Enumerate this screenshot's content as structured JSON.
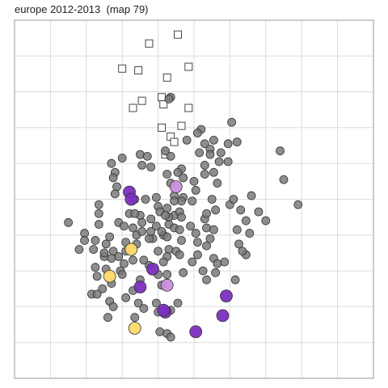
{
  "chart_data": {
    "type": "scatter",
    "title": "europe 2012-2013  (map 79)",
    "xlabel": "",
    "ylabel": "",
    "xlim": [
      0,
      10
    ],
    "ylim": [
      0,
      10
    ],
    "grid": true,
    "axes_ticks_visible": false,
    "colors": {
      "gray": "#7a7a7a",
      "purple": "#7b2fbf",
      "lavender": "#c98fdc",
      "yellow": "#ffd966",
      "square_fill": "#ffffff",
      "edge": "#333333",
      "grid": "#dcdcdc",
      "border": "#9a9a9a"
    },
    "series": [
      {
        "marker": "square",
        "color": "#ffffff",
        "points": [
          [
            4.55,
            9.6
          ],
          [
            3.75,
            9.35
          ],
          [
            4.85,
            8.7
          ],
          [
            3.0,
            8.65
          ],
          [
            3.45,
            8.6
          ],
          [
            4.25,
            8.4
          ],
          [
            4.1,
            7.85
          ],
          [
            3.55,
            7.75
          ],
          [
            4.15,
            7.65
          ],
          [
            4.85,
            7.55
          ],
          [
            3.3,
            7.55
          ],
          [
            4.1,
            7.0
          ],
          [
            4.65,
            7.05
          ],
          [
            4.35,
            6.75
          ],
          [
            4.45,
            6.6
          ],
          [
            4.2,
            6.25
          ]
        ]
      },
      {
        "marker": "circle",
        "color": "#7a7a7a",
        "points": [
          [
            4.35,
            7.85
          ],
          [
            4.3,
            7.8
          ],
          [
            6.05,
            7.15
          ],
          [
            4.8,
            6.65
          ],
          [
            5.55,
            6.65
          ],
          [
            5.3,
            6.55
          ],
          [
            5.45,
            6.4
          ],
          [
            5.15,
            6.3
          ],
          [
            5.45,
            6.25
          ],
          [
            5.7,
            6.05
          ],
          [
            5.3,
            5.95
          ],
          [
            4.65,
            5.85
          ],
          [
            3.55,
            5.95
          ],
          [
            3.8,
            5.9
          ],
          [
            4.55,
            5.75
          ],
          [
            5.3,
            5.7
          ],
          [
            4.25,
            5.7
          ],
          [
            2.8,
            5.75
          ],
          [
            2.75,
            5.6
          ],
          [
            4.35,
            5.45
          ],
          [
            5.0,
            5.5
          ],
          [
            4.7,
            5.05
          ],
          [
            3.65,
            5.0
          ],
          [
            4.65,
            4.95
          ],
          [
            4.95,
            4.95
          ],
          [
            5.6,
            4.7
          ],
          [
            6.0,
            4.85
          ],
          [
            4.0,
            4.8
          ],
          [
            3.2,
            4.6
          ],
          [
            3.5,
            4.55
          ],
          [
            4.05,
            4.65
          ],
          [
            2.9,
            4.35
          ],
          [
            2.35,
            4.6
          ],
          [
            5.3,
            4.45
          ],
          [
            3.8,
            4.45
          ],
          [
            3.55,
            4.35
          ],
          [
            4.3,
            4.3
          ],
          [
            3.95,
            4.25
          ],
          [
            4.45,
            4.2
          ],
          [
            4.6,
            4.15
          ],
          [
            5.05,
            4.05
          ],
          [
            5.35,
            4.2
          ],
          [
            3.4,
            4.0
          ],
          [
            3.55,
            4.1
          ],
          [
            4.15,
            4.0
          ],
          [
            4.25,
            3.95
          ],
          [
            3.85,
            3.9
          ],
          [
            4.65,
            3.85
          ],
          [
            5.45,
            3.9
          ],
          [
            5.1,
            3.8
          ],
          [
            3.1,
            3.8
          ],
          [
            2.2,
            3.6
          ],
          [
            3.4,
            3.75
          ],
          [
            4.3,
            3.6
          ],
          [
            4.0,
            3.55
          ],
          [
            4.5,
            3.55
          ],
          [
            5.35,
            3.7
          ],
          [
            3.1,
            3.55
          ],
          [
            4.6,
            3.45
          ],
          [
            2.9,
            3.4
          ],
          [
            4.25,
            3.4
          ],
          [
            5.55,
            3.35
          ],
          [
            3.3,
            3.3
          ],
          [
            3.6,
            3.3
          ],
          [
            4.15,
            3.25
          ],
          [
            4.95,
            3.25
          ],
          [
            5.85,
            3.25
          ],
          [
            5.65,
            3.2
          ],
          [
            3.05,
            3.2
          ],
          [
            3.75,
            3.15
          ],
          [
            2.95,
            3.0
          ],
          [
            5.25,
            3.0
          ],
          [
            4.7,
            2.95
          ],
          [
            5.6,
            2.95
          ],
          [
            3.5,
            2.75
          ],
          [
            2.7,
            2.65
          ],
          [
            4.1,
            2.6
          ],
          [
            2.45,
            2.5
          ],
          [
            3.3,
            2.45
          ],
          [
            2.15,
            2.35
          ],
          [
            2.3,
            2.35
          ],
          [
            3.1,
            2.25
          ],
          [
            2.65,
            2.15
          ],
          [
            3.45,
            2.1
          ],
          [
            3.95,
            2.1
          ],
          [
            4.55,
            2.1
          ],
          [
            2.75,
            2.0
          ],
          [
            3.6,
            1.95
          ],
          [
            4.35,
            1.9
          ],
          [
            4.0,
            1.85
          ],
          [
            2.6,
            1.7
          ],
          [
            3.35,
            1.7
          ],
          [
            4.05,
            1.3
          ],
          [
            4.25,
            1.25
          ],
          [
            4.35,
            1.15
          ],
          [
            1.5,
            4.35
          ],
          [
            1.95,
            4.05
          ],
          [
            2.35,
            4.3
          ],
          [
            2.65,
            3.95
          ],
          [
            2.55,
            3.75
          ],
          [
            2.25,
            3.85
          ],
          [
            2.75,
            3.55
          ],
          [
            1.8,
            3.6
          ],
          [
            1.95,
            3.85
          ],
          [
            2.55,
            3.05
          ],
          [
            2.25,
            3.1
          ],
          [
            2.5,
            3.4
          ],
          [
            6.1,
            5.0
          ],
          [
            6.3,
            4.7
          ],
          [
            5.5,
            5.0
          ],
          [
            5.65,
            5.45
          ],
          [
            5.05,
            5.25
          ],
          [
            5.35,
            4.6
          ],
          [
            5.55,
            4.15
          ],
          [
            6.25,
            3.75
          ],
          [
            5.1,
            3.45
          ],
          [
            5.35,
            2.75
          ],
          [
            6.15,
            2.75
          ],
          [
            6.45,
            4.4
          ],
          [
            7.0,
            4.4
          ],
          [
            7.5,
            5.55
          ],
          [
            7.9,
            4.85
          ],
          [
            6.6,
            5.1
          ],
          [
            6.55,
            4.05
          ],
          [
            6.45,
            3.45
          ],
          [
            3.35,
            4.6
          ],
          [
            3.75,
            3.9
          ],
          [
            5.55,
            5.75
          ],
          [
            5.2,
            6.95
          ],
          [
            5.1,
            6.85
          ],
          [
            6.2,
            6.6
          ],
          [
            7.4,
            6.35
          ],
          [
            6.8,
            4.65
          ],
          [
            6.35,
            3.55
          ],
          [
            4.45,
            4.55
          ],
          [
            4.45,
            5.1
          ],
          [
            3.95,
            5.05
          ],
          [
            5.95,
            6.05
          ],
          [
            4.6,
            4.65
          ],
          [
            3.35,
            5.0
          ],
          [
            2.85,
            5.35
          ],
          [
            2.8,
            5.15
          ],
          [
            2.35,
            4.85
          ],
          [
            4.9,
            4.25
          ],
          [
            4.45,
            4.95
          ],
          [
            4.7,
            5.6
          ],
          [
            2.5,
            3.5
          ],
          [
            2.7,
            3.35
          ],
          [
            3.3,
            4.2
          ],
          [
            3.05,
            4.25
          ],
          [
            4.2,
            6.35
          ],
          [
            4.1,
            4.1
          ],
          [
            3.0,
            2.9
          ],
          [
            5.75,
            6.3
          ],
          [
            5.95,
            6.55
          ],
          [
            3.5,
            6.25
          ],
          [
            3.7,
            6.2
          ],
          [
            3.0,
            6.15
          ],
          [
            2.7,
            6.0
          ],
          [
            4.25,
            4.75
          ],
          [
            4.3,
            4.5
          ],
          [
            3.8,
            4.1
          ],
          [
            4.2,
            4.55
          ],
          [
            4.65,
            4.5
          ],
          [
            6.2,
            4.15
          ],
          [
            4.0,
            2.9
          ],
          [
            4.25,
            2.9
          ],
          [
            2.3,
            2.85
          ],
          [
            4.35,
            6.2
          ]
        ]
      },
      {
        "marker": "circle",
        "color": "#7b2fbf",
        "points": [
          [
            3.2,
            5.2
          ],
          [
            3.25,
            5.0
          ],
          [
            3.85,
            3.05
          ],
          [
            3.5,
            2.55
          ],
          [
            4.2,
            1.85
          ],
          [
            4.15,
            1.9
          ],
          [
            5.05,
            1.3
          ],
          [
            5.9,
            2.3
          ],
          [
            5.8,
            1.75
          ]
        ]
      },
      {
        "marker": "circle",
        "color": "#c98fdc",
        "points": [
          [
            4.5,
            5.35
          ],
          [
            4.25,
            2.6
          ]
        ]
      },
      {
        "marker": "circle",
        "color": "#ffd966",
        "points": [
          [
            3.25,
            3.6
          ],
          [
            2.65,
            2.85
          ],
          [
            3.35,
            1.4
          ]
        ]
      }
    ]
  }
}
